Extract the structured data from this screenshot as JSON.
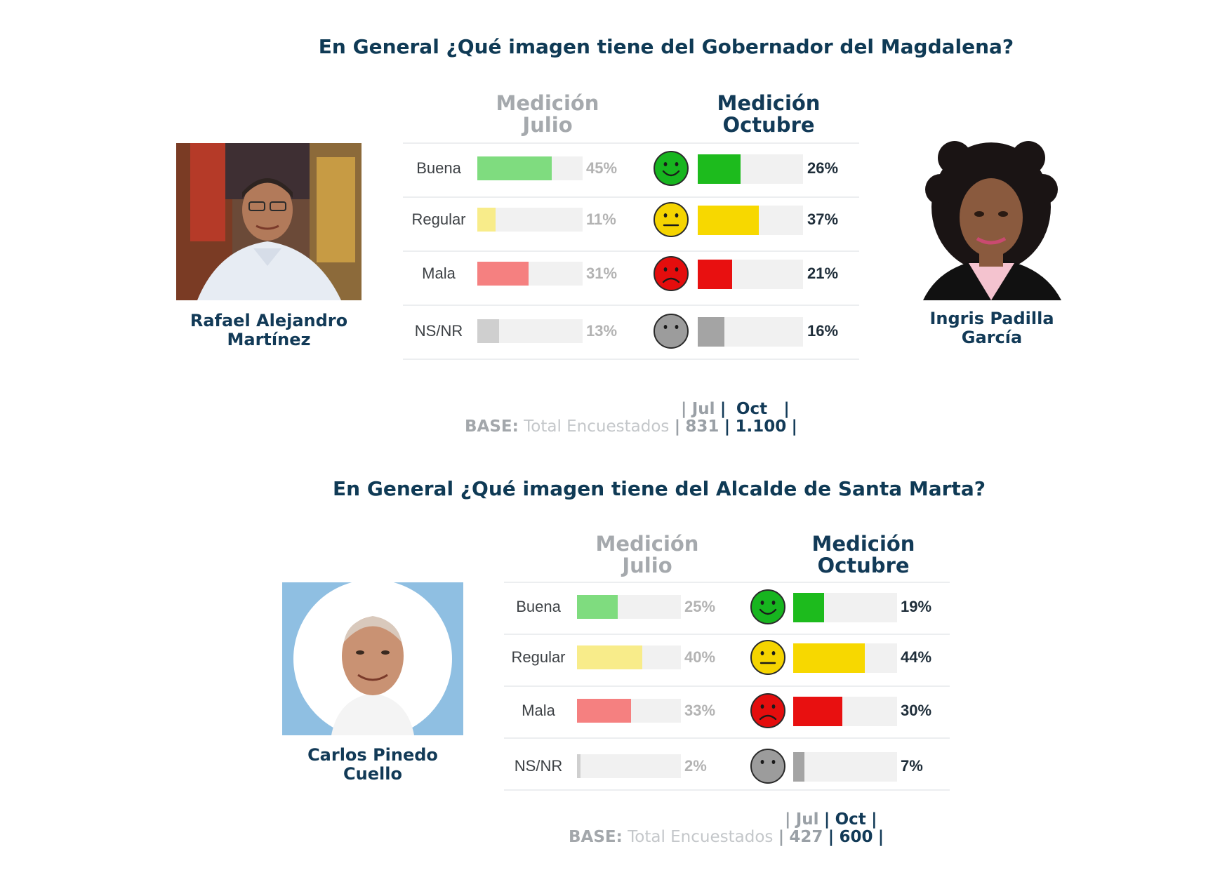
{
  "panels": [
    {
      "title": "En General ¿Qué imagen tiene del Gobernador del Magdalena?",
      "col_jul": "Medición\nJulio",
      "col_oct": "Medición\nOctubre",
      "left_name": "Rafael Alejandro\nMartínez",
      "right_name": "Ingris Padilla\nGarcía",
      "base": {
        "label": "BASE:",
        "text": "Total Encuestados",
        "jul_label": "Jul",
        "oct_label": "Oct",
        "jul_n": "831",
        "oct_n": "1.100"
      }
    },
    {
      "title": "En General ¿Qué imagen tiene del Alcalde de Santa Marta?",
      "col_jul": "Medición\nJulio",
      "col_oct": "Medición\nOctubre",
      "left_name": "Carlos Pinedo\nCuello",
      "base": {
        "label": "BASE:",
        "text": "Total Encuestados",
        "jul_label": "Jul",
        "oct_label": "Oct",
        "jul_n": "427",
        "oct_n": "600"
      }
    }
  ],
  "chart_data": [
    {
      "type": "bar",
      "title": "En General ¿Qué imagen tiene del Gobernador del Magdalena?",
      "categories": [
        "Buena",
        "Regular",
        "Mala",
        "NS/NR"
      ],
      "series": [
        {
          "name": "Medición Julio",
          "values": [
            45,
            11,
            31,
            13
          ],
          "labels": [
            "45%",
            "11%",
            "31%",
            "13%"
          ]
        },
        {
          "name": "Medición Octubre",
          "values": [
            26,
            37,
            21,
            16
          ],
          "labels": [
            "26%",
            "37%",
            "21%",
            "16%"
          ]
        }
      ],
      "colors_jul": [
        "#7fdc7f",
        "#f8ec8a",
        "#f58080",
        "#cfcfcf"
      ],
      "colors_oct": [
        "#1dbb1d",
        "#f7d800",
        "#e81010",
        "#a4a4a4"
      ],
      "faces": [
        "happy-face-icon",
        "neutral-face-icon",
        "sad-face-icon",
        "blank-face-icon"
      ],
      "face_colors": [
        "#17b51f",
        "#f5d400",
        "#e40d0d",
        "#9c9c9c"
      ]
    },
    {
      "type": "bar",
      "title": "En General ¿Qué imagen tiene del Alcalde de Santa Marta?",
      "categories": [
        "Buena",
        "Regular",
        "Mala",
        "NS/NR"
      ],
      "series": [
        {
          "name": "Medición Julio",
          "values": [
            25,
            40,
            33,
            2
          ],
          "labels": [
            "25%",
            "40%",
            "33%",
            "2%"
          ]
        },
        {
          "name": "Medición Octubre",
          "values": [
            19,
            44,
            30,
            7
          ],
          "labels": [
            "19%",
            "44%",
            "30%",
            "7%"
          ]
        }
      ],
      "colors_jul": [
        "#7fdc7f",
        "#f8ec8a",
        "#f58080",
        "#cfcfcf"
      ],
      "colors_oct": [
        "#1dbb1d",
        "#f7d800",
        "#e81010",
        "#a4a4a4"
      ],
      "faces": [
        "happy-face-icon",
        "neutral-face-icon",
        "sad-face-icon",
        "blank-face-icon"
      ],
      "face_colors": [
        "#17b51f",
        "#f5d400",
        "#e40d0d",
        "#9c9c9c"
      ]
    }
  ]
}
